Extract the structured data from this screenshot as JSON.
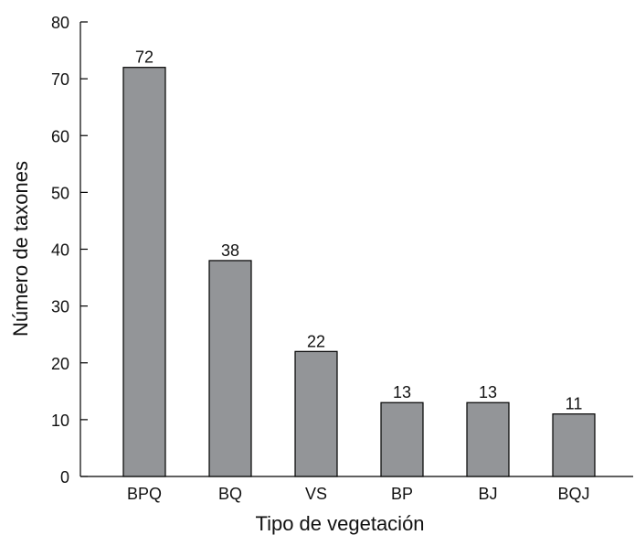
{
  "chart_data": {
    "type": "bar",
    "title": "",
    "xlabel": "Tipo de vegetación",
    "ylabel": "Número de taxones",
    "categories": [
      "BPQ",
      "BQ",
      "VS",
      "BP",
      "BJ",
      "BQJ"
    ],
    "values": [
      72,
      38,
      22,
      13,
      13,
      11
    ],
    "data_labels": [
      "72",
      "38",
      "22",
      "13",
      "13",
      "11"
    ],
    "ylim": [
      0,
      80
    ],
    "yticks": [
      0,
      10,
      20,
      30,
      40,
      50,
      60,
      70,
      80
    ],
    "grid": false,
    "legend": "none",
    "bar_color": "#939598",
    "bar_edge_color": "#000000"
  }
}
